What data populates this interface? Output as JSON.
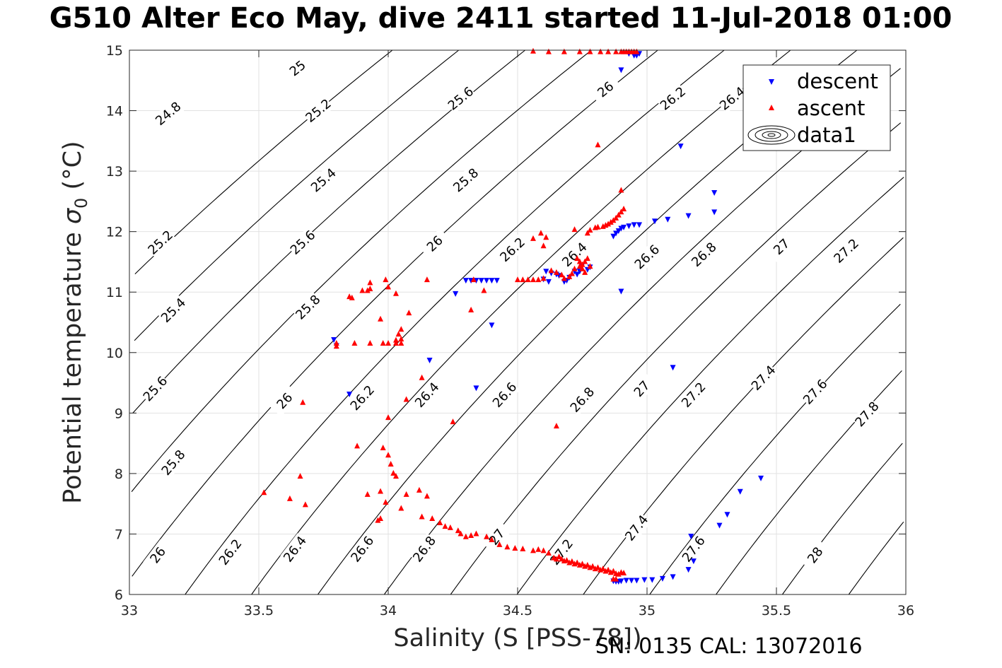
{
  "title": "G510 Alter Eco May, dive 2411 started 11-Jul-2018 01:00",
  "footer": "SN: 0135  CAL: 13072016",
  "chart_data": {
    "type": "scatter",
    "title": "G510 Alter Eco May, dive 2411 started 11-Jul-2018 01:00",
    "xlabel": "Salinity (S [PSS-78])",
    "ylabel_main": "Potential temperature ",
    "ylabel_sigma": "σ",
    "ylabel_sub": "0",
    "ylabel_unit": " (°C)",
    "xlim": [
      33,
      36
    ],
    "ylim": [
      6,
      15
    ],
    "xticks": [
      33,
      33.5,
      34,
      34.5,
      35,
      35.5,
      36
    ],
    "yticks": [
      6,
      7,
      8,
      9,
      10,
      11,
      12,
      13,
      14,
      15
    ],
    "grid": true,
    "legend_position": "top-right",
    "legend": [
      {
        "label": "descent",
        "marker": "triangle-down",
        "color": "#0000ff"
      },
      {
        "label": "ascent",
        "marker": "triangle-up",
        "color": "#ff0000"
      },
      {
        "label": "data1",
        "marker": "contour",
        "color": "#000000"
      }
    ],
    "contour_levels": [
      24.8,
      25.0,
      25.2,
      25.4,
      25.6,
      25.8,
      26.0,
      26.2,
      26.4,
      26.6,
      26.8,
      27.0,
      27.2,
      27.4,
      27.6,
      27.8,
      28.0
    ],
    "contour_labels": [
      {
        "text": "25",
        "s": 33.65,
        "t": 14.7
      },
      {
        "text": "24.8",
        "s": 33.15,
        "t": 13.95
      },
      {
        "text": "25.2",
        "s": 33.73,
        "t": 14.0
      },
      {
        "text": "25.6",
        "s": 34.28,
        "t": 14.2
      },
      {
        "text": "26",
        "s": 34.84,
        "t": 14.35
      },
      {
        "text": "26.2",
        "s": 35.1,
        "t": 14.2
      },
      {
        "text": "26.4",
        "s": 35.33,
        "t": 14.2
      },
      {
        "text": "25.4",
        "s": 33.75,
        "t": 12.85
      },
      {
        "text": "25.8",
        "s": 34.3,
        "t": 12.85
      },
      {
        "text": "25.2",
        "s": 33.12,
        "t": 11.82
      },
      {
        "text": "25.6",
        "s": 33.67,
        "t": 11.82
      },
      {
        "text": "26",
        "s": 34.18,
        "t": 11.8
      },
      {
        "text": "26.2",
        "s": 34.48,
        "t": 11.7
      },
      {
        "text": "26.4",
        "s": 34.72,
        "t": 11.62
      },
      {
        "text": "26.6",
        "s": 35.0,
        "t": 11.58
      },
      {
        "text": "26.8",
        "s": 35.22,
        "t": 11.62
      },
      {
        "text": "27",
        "s": 35.52,
        "t": 11.75
      },
      {
        "text": "27.2",
        "s": 35.77,
        "t": 11.68
      },
      {
        "text": "25.4",
        "s": 33.17,
        "t": 10.7
      },
      {
        "text": "25.8",
        "s": 33.69,
        "t": 10.75
      },
      {
        "text": "25.6",
        "s": 33.1,
        "t": 9.4
      },
      {
        "text": "26",
        "s": 33.6,
        "t": 9.2
      },
      {
        "text": "26.2",
        "s": 33.9,
        "t": 9.25
      },
      {
        "text": "26.4",
        "s": 34.15,
        "t": 9.3
      },
      {
        "text": "26.6",
        "s": 34.45,
        "t": 9.3
      },
      {
        "text": "26.8",
        "s": 34.75,
        "t": 9.22
      },
      {
        "text": "27",
        "s": 34.98,
        "t": 9.4
      },
      {
        "text": "27.2",
        "s": 35.18,
        "t": 9.3
      },
      {
        "text": "27.4",
        "s": 35.45,
        "t": 9.58
      },
      {
        "text": "27.6",
        "s": 35.65,
        "t": 9.35
      },
      {
        "text": "27.8",
        "s": 35.85,
        "t": 8.98
      },
      {
        "text": "25.8",
        "s": 33.17,
        "t": 8.18
      },
      {
        "text": "26",
        "s": 33.11,
        "t": 6.65
      },
      {
        "text": "26.2",
        "s": 33.39,
        "t": 6.7
      },
      {
        "text": "26.4",
        "s": 33.64,
        "t": 6.75
      },
      {
        "text": "26.6",
        "s": 33.9,
        "t": 6.75
      },
      {
        "text": "26.8",
        "s": 34.14,
        "t": 6.75
      },
      {
        "text": "27",
        "s": 34.42,
        "t": 6.95
      },
      {
        "text": "27.2",
        "s": 34.67,
        "t": 6.7
      },
      {
        "text": "27.4",
        "s": 34.96,
        "t": 7.1
      },
      {
        "text": "27.6",
        "s": 35.18,
        "t": 6.75
      },
      {
        "text": "28",
        "s": 35.65,
        "t": 6.65
      }
    ],
    "series": [
      {
        "name": "descent",
        "color": "#0000ff",
        "marker": "triangle-down",
        "points": [
          [
            34.97,
            14.95
          ],
          [
            34.96,
            14.92
          ],
          [
            34.95,
            14.92
          ],
          [
            34.93,
            14.95
          ],
          [
            34.9,
            14.68
          ],
          [
            35.13,
            13.42
          ],
          [
            35.26,
            12.65
          ],
          [
            35.26,
            12.33
          ],
          [
            35.16,
            12.27
          ],
          [
            35.08,
            12.21
          ],
          [
            35.03,
            12.18
          ],
          [
            34.97,
            12.12
          ],
          [
            34.95,
            12.12
          ],
          [
            34.93,
            12.1
          ],
          [
            34.91,
            12.08
          ],
          [
            34.9,
            12.06
          ],
          [
            34.89,
            12.02
          ],
          [
            34.88,
            11.98
          ],
          [
            34.87,
            11.93
          ],
          [
            34.9,
            11.02
          ],
          [
            34.78,
            11.42
          ],
          [
            34.77,
            11.38
          ],
          [
            34.75,
            11.45
          ],
          [
            34.74,
            11.35
          ],
          [
            34.73,
            11.3
          ],
          [
            34.72,
            11.35
          ],
          [
            34.7,
            11.25
          ],
          [
            34.69,
            11.2
          ],
          [
            34.68,
            11.18
          ],
          [
            34.66,
            11.28
          ],
          [
            34.65,
            11.3
          ],
          [
            34.63,
            11.32
          ],
          [
            34.61,
            11.35
          ],
          [
            34.6,
            11.22
          ],
          [
            34.62,
            11.18
          ],
          [
            34.42,
            11.2
          ],
          [
            34.4,
            11.2
          ],
          [
            34.38,
            11.2
          ],
          [
            34.36,
            11.2
          ],
          [
            34.34,
            11.2
          ],
          [
            34.32,
            11.2
          ],
          [
            34.3,
            11.2
          ],
          [
            34.26,
            10.98
          ],
          [
            34.4,
            10.46
          ],
          [
            34.16,
            9.88
          ],
          [
            34.34,
            9.42
          ],
          [
            35.1,
            9.76
          ],
          [
            33.79,
            10.22
          ],
          [
            33.8,
            10.12
          ],
          [
            33.85,
            9.32
          ],
          [
            35.44,
            7.93
          ],
          [
            35.36,
            7.71
          ],
          [
            35.31,
            7.33
          ],
          [
            35.28,
            7.15
          ],
          [
            35.17,
            6.97
          ],
          [
            35.18,
            6.56
          ],
          [
            35.16,
            6.42
          ],
          [
            35.1,
            6.3
          ],
          [
            35.06,
            6.27
          ],
          [
            35.02,
            6.25
          ],
          [
            34.99,
            6.25
          ],
          [
            34.96,
            6.24
          ],
          [
            34.94,
            6.24
          ],
          [
            34.92,
            6.24
          ],
          [
            34.9,
            6.23
          ],
          [
            34.89,
            6.22
          ],
          [
            34.88,
            6.22
          ],
          [
            34.87,
            6.23
          ]
        ]
      },
      {
        "name": "ascent",
        "color": "#ff0000",
        "marker": "triangle-up",
        "points": [
          [
            34.56,
            14.98
          ],
          [
            34.62,
            14.97
          ],
          [
            34.68,
            14.97
          ],
          [
            34.74,
            14.97
          ],
          [
            34.78,
            14.97
          ],
          [
            34.82,
            14.97
          ],
          [
            34.85,
            14.97
          ],
          [
            34.88,
            14.97
          ],
          [
            34.9,
            14.97
          ],
          [
            34.91,
            14.97
          ],
          [
            34.92,
            14.97
          ],
          [
            34.93,
            14.97
          ],
          [
            34.94,
            14.97
          ],
          [
            34.95,
            14.97
          ],
          [
            34.96,
            14.97
          ],
          [
            34.81,
            13.43
          ],
          [
            34.9,
            12.68
          ],
          [
            34.91,
            12.37
          ],
          [
            34.9,
            12.32
          ],
          [
            34.89,
            12.27
          ],
          [
            34.88,
            12.22
          ],
          [
            34.87,
            12.18
          ],
          [
            34.86,
            12.15
          ],
          [
            34.85,
            12.12
          ],
          [
            34.84,
            12.1
          ],
          [
            34.83,
            12.08
          ],
          [
            34.81,
            12.07
          ],
          [
            34.8,
            12.06
          ],
          [
            34.78,
            12.02
          ],
          [
            34.77,
            11.97
          ],
          [
            34.72,
            12.03
          ],
          [
            34.59,
            11.97
          ],
          [
            34.61,
            11.9
          ],
          [
            34.56,
            11.88
          ],
          [
            34.6,
            11.76
          ],
          [
            34.73,
            11.55
          ],
          [
            34.74,
            11.5
          ],
          [
            34.75,
            11.45
          ],
          [
            34.76,
            11.5
          ],
          [
            34.77,
            11.55
          ],
          [
            34.74,
            11.42
          ],
          [
            34.72,
            11.38
          ],
          [
            34.71,
            11.3
          ],
          [
            34.7,
            11.25
          ],
          [
            34.68,
            11.22
          ],
          [
            34.67,
            11.28
          ],
          [
            34.65,
            11.32
          ],
          [
            34.63,
            11.35
          ],
          [
            34.6,
            11.22
          ],
          [
            34.58,
            11.2
          ],
          [
            34.56,
            11.2
          ],
          [
            34.54,
            11.2
          ],
          [
            34.52,
            11.2
          ],
          [
            34.5,
            11.2
          ],
          [
            34.76,
            11.32
          ],
          [
            34.75,
            11.38
          ],
          [
            34.78,
            11.42
          ],
          [
            34.15,
            11.2
          ],
          [
            34.33,
            11.2
          ],
          [
            34.37,
            11.02
          ],
          [
            34.32,
            10.7
          ],
          [
            33.86,
            10.9
          ],
          [
            33.85,
            10.92
          ],
          [
            33.9,
            11.02
          ],
          [
            33.92,
            11.02
          ],
          [
            33.93,
            11.05
          ],
          [
            33.93,
            11.15
          ],
          [
            33.99,
            11.2
          ],
          [
            34.0,
            11.08
          ],
          [
            34.03,
            10.97
          ],
          [
            34.08,
            10.65
          ],
          [
            33.97,
            10.55
          ],
          [
            34.05,
            10.38
          ],
          [
            34.04,
            10.3
          ],
          [
            34.03,
            10.2
          ],
          [
            34.05,
            10.22
          ],
          [
            34.05,
            10.15
          ],
          [
            34.03,
            10.15
          ],
          [
            34.0,
            10.15
          ],
          [
            33.98,
            10.15
          ],
          [
            33.93,
            10.15
          ],
          [
            33.87,
            10.15
          ],
          [
            33.8,
            10.15
          ],
          [
            33.8,
            10.1
          ],
          [
            34.13,
            9.58
          ],
          [
            34.07,
            9.22
          ],
          [
            34.25,
            8.85
          ],
          [
            34.65,
            8.78
          ],
          [
            33.67,
            9.17
          ],
          [
            34.0,
            8.92
          ],
          [
            33.88,
            8.45
          ],
          [
            33.98,
            8.42
          ],
          [
            34.0,
            8.3
          ],
          [
            34.01,
            8.15
          ],
          [
            34.02,
            8.0
          ],
          [
            34.03,
            7.95
          ],
          [
            33.52,
            7.68
          ],
          [
            33.62,
            7.58
          ],
          [
            33.66,
            7.95
          ],
          [
            33.68,
            7.48
          ],
          [
            33.92,
            7.65
          ],
          [
            33.97,
            7.7
          ],
          [
            33.99,
            7.52
          ],
          [
            34.07,
            7.65
          ],
          [
            34.12,
            7.72
          ],
          [
            34.15,
            7.62
          ],
          [
            33.96,
            7.22
          ],
          [
            33.97,
            7.25
          ],
          [
            34.05,
            7.42
          ],
          [
            34.13,
            7.28
          ],
          [
            34.17,
            7.25
          ],
          [
            34.2,
            7.18
          ],
          [
            34.22,
            7.12
          ],
          [
            34.24,
            7.1
          ],
          [
            34.27,
            7.05
          ],
          [
            34.28,
            7.0
          ],
          [
            34.3,
            6.95
          ],
          [
            34.32,
            6.97
          ],
          [
            34.34,
            7.0
          ],
          [
            34.38,
            6.95
          ],
          [
            34.4,
            6.9
          ],
          [
            34.43,
            6.82
          ],
          [
            34.46,
            6.78
          ],
          [
            34.49,
            6.76
          ],
          [
            34.52,
            6.75
          ],
          [
            34.56,
            6.72
          ],
          [
            34.58,
            6.74
          ],
          [
            34.6,
            6.72
          ],
          [
            34.62,
            6.68
          ],
          [
            34.64,
            6.6
          ],
          [
            34.65,
            6.58
          ],
          [
            34.66,
            6.62
          ],
          [
            34.67,
            6.58
          ],
          [
            34.68,
            6.55
          ],
          [
            34.69,
            6.56
          ],
          [
            34.7,
            6.52
          ],
          [
            34.71,
            6.54
          ],
          [
            34.72,
            6.5
          ],
          [
            34.73,
            6.52
          ],
          [
            34.74,
            6.48
          ],
          [
            34.75,
            6.5
          ],
          [
            34.76,
            6.46
          ],
          [
            34.77,
            6.48
          ],
          [
            34.78,
            6.44
          ],
          [
            34.79,
            6.46
          ],
          [
            34.8,
            6.42
          ],
          [
            34.81,
            6.44
          ],
          [
            34.82,
            6.4
          ],
          [
            34.83,
            6.42
          ],
          [
            34.84,
            6.38
          ],
          [
            34.85,
            6.4
          ],
          [
            34.86,
            6.36
          ],
          [
            34.87,
            6.38
          ],
          [
            34.88,
            6.34
          ],
          [
            34.9,
            6.36
          ],
          [
            34.91,
            6.35
          ],
          [
            34.89,
            6.33
          ],
          [
            34.88,
            6.25
          ],
          [
            34.87,
            6.25
          ]
        ]
      }
    ]
  }
}
